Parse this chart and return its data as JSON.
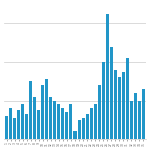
{
  "values": [
    12,
    16,
    11,
    15,
    18,
    13,
    30,
    22,
    15,
    28,
    31,
    22,
    20,
    18,
    16,
    14,
    18,
    4,
    10,
    11,
    13,
    16,
    18,
    28,
    40,
    65,
    48,
    36,
    32,
    35,
    42,
    20,
    24,
    20,
    26
  ],
  "bar_color": "#2196c8",
  "background_color": "#ffffff",
  "plot_bg_color": "#ffffff",
  "grid_color": "#cccccc",
  "tick_color": "#666666",
  "spine_color": "#cccccc",
  "ylim": [
    0,
    70
  ],
  "bar_width": 0.75
}
